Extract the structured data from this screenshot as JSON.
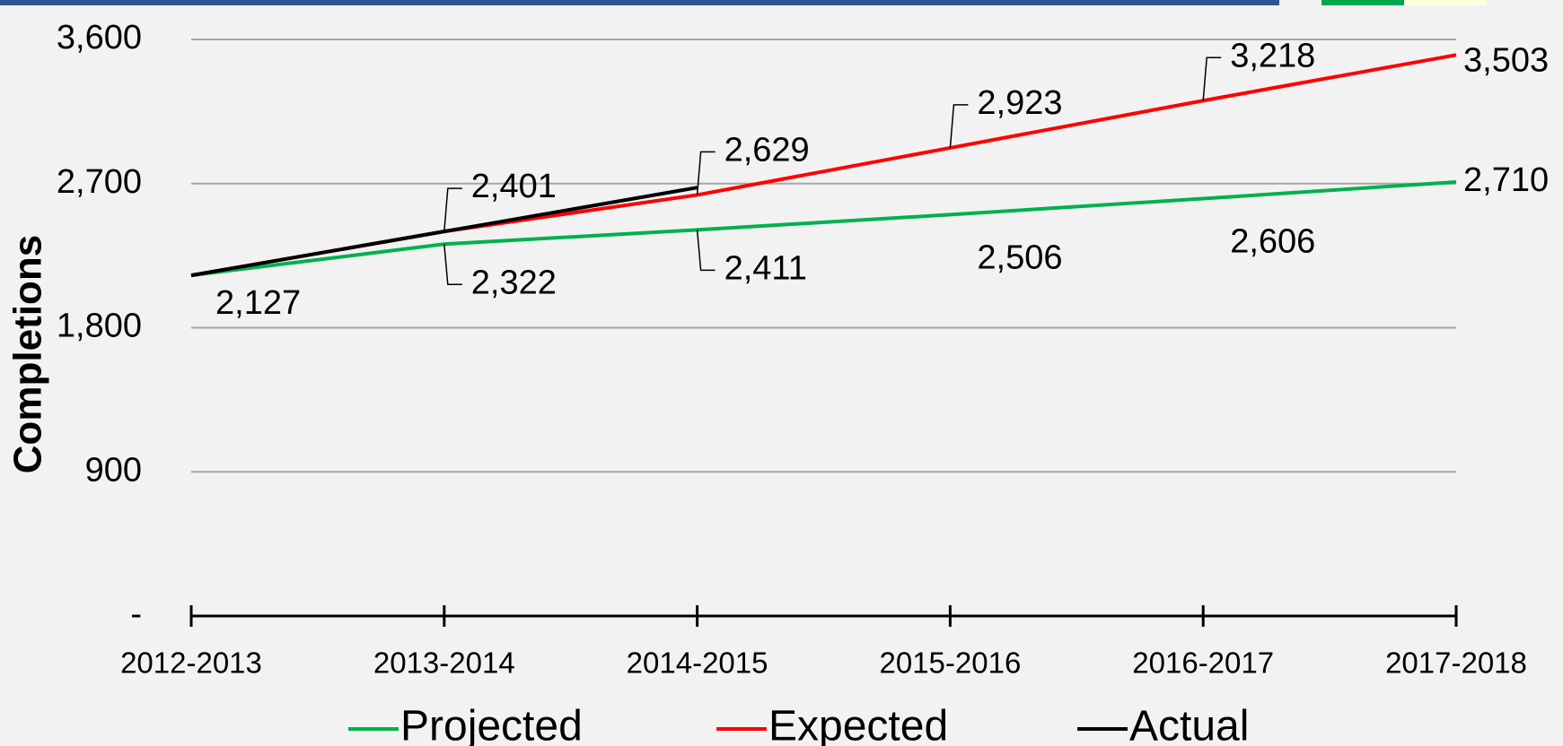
{
  "chart_data": {
    "type": "line",
    "y_label": "Completions",
    "categories": [
      "2012-2013",
      "2013-2014",
      "2014-2015",
      "2015-2016",
      "2016-2017",
      "2017-2018"
    ],
    "series": [
      {
        "name": "Projected",
        "color": "#00b050",
        "values": [
          2127,
          2322,
          2411,
          2506,
          2606,
          2710
        ],
        "value_labels": [
          "2,127",
          "2,322",
          "2,411",
          "2,506",
          "2,606",
          "2,710"
        ]
      },
      {
        "name": "Expected",
        "color": "#ff0000",
        "values": [
          2127,
          2401,
          2629,
          2923,
          3218,
          3503
        ],
        "value_labels": [
          null,
          "2,401",
          "2,629",
          "2,923",
          "3,218",
          "3,503"
        ]
      },
      {
        "name": "Actual",
        "color": "#000000",
        "values": [
          2127,
          2401,
          2675,
          null,
          null,
          null
        ]
      }
    ],
    "ylim": [
      0,
      3600
    ],
    "yticks": [
      {
        "value": 0,
        "label": "-"
      },
      900,
      {
        "value": 1800,
        "label": "1,800"
      },
      {
        "value": 2700,
        "label": "2,700"
      },
      {
        "value": 3600,
        "label": "3,600"
      }
    ],
    "grid": true,
    "legend": "bottom"
  }
}
